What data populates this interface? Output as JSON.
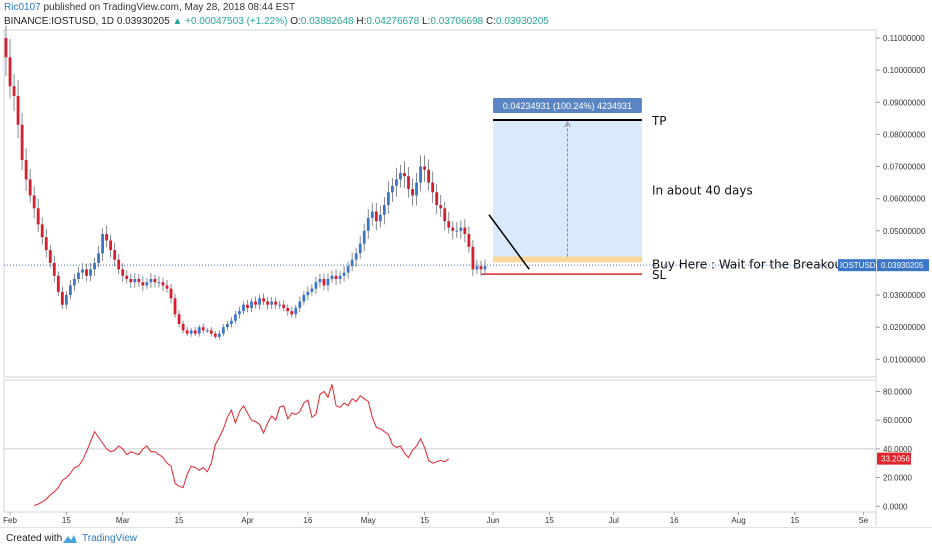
{
  "header": {
    "user": "Ric0107",
    "published": "published on TradingView.com, May 28, 2018 08:44 EST",
    "symbol_line": "BINANCE:IOSTUSD, 1D",
    "last": "0.03930205",
    "change": "▲ +0.00047503 (+1.22%)",
    "ohlc": {
      "o_label": "O:",
      "o": "0.03882648",
      "h_label": "H:",
      "h": "0.04276678",
      "l_label": "L:",
      "l": "0.03706698",
      "c_label": "C:",
      "c": "0.03930205"
    }
  },
  "footer": {
    "created": "Created with",
    "brand": "TradingView"
  },
  "colors": {
    "up": "#3c76c9",
    "down": "#d81e2c",
    "rsi": "#e0242c",
    "projection_fill": "#dbeafa",
    "entry_zone": "#fbd79a",
    "tp_line": "#000000",
    "sl_line": "#e0242c",
    "price_tag": "#3c76c9"
  },
  "chart_data": {
    "type": "candlestick",
    "symbol": "IOSTUSD",
    "interval": "1D",
    "price_axis": {
      "ticks": [
        "0.11000000",
        "0.10000000",
        "0.09000000",
        "0.08000000",
        "0.07000000",
        "0.06000000",
        "0.05000000",
        "0.04000000",
        "0.03000000",
        "0.02000000",
        "0.01000000"
      ],
      "ylim": [
        0.0045,
        0.1125
      ],
      "current_label": "IOSTUSD",
      "current_value": "0.03930205"
    },
    "rsi_axis": {
      "ticks": [
        "80.0000",
        "60.0000",
        "40.0000",
        "20.0000",
        "0.0000"
      ],
      "ylim": [
        -4,
        88
      ],
      "band_line": 40,
      "current_value": "33.2056"
    },
    "x_ticks": [
      {
        "label": "Feb",
        "day": 1
      },
      {
        "label": "15",
        "day": 15
      },
      {
        "label": "Mar",
        "day": 29
      },
      {
        "label": "15",
        "day": 43
      },
      {
        "label": "Apr",
        "day": 60
      },
      {
        "label": "16",
        "day": 75
      },
      {
        "label": "May",
        "day": 90
      },
      {
        "label": "15",
        "day": 104
      },
      {
        "label": "Jun",
        "day": 121
      },
      {
        "label": "15",
        "day": 135
      },
      {
        "label": "Jul",
        "day": 151
      },
      {
        "label": "16",
        "day": 166
      },
      {
        "label": "Aug",
        "day": 182
      },
      {
        "label": "15",
        "day": 196
      },
      {
        "label": "Se",
        "day": 213
      }
    ],
    "x_note": "day 0 = 2018-01-31",
    "close": [
      0.104,
      0.095,
      0.092,
      0.083,
      0.072,
      0.066,
      0.061,
      0.057,
      0.052,
      0.048,
      0.044,
      0.04,
      0.036,
      0.031,
      0.027,
      0.03,
      0.033,
      0.035,
      0.037,
      0.038,
      0.036,
      0.038,
      0.04,
      0.043,
      0.049,
      0.047,
      0.044,
      0.041,
      0.038,
      0.036,
      0.035,
      0.034,
      0.035,
      0.034,
      0.033,
      0.034,
      0.035,
      0.034,
      0.034,
      0.033,
      0.032,
      0.029,
      0.024,
      0.021,
      0.019,
      0.018,
      0.019,
      0.018,
      0.02,
      0.019,
      0.019,
      0.018,
      0.017,
      0.018,
      0.02,
      0.021,
      0.022,
      0.024,
      0.025,
      0.027,
      0.026,
      0.028,
      0.027,
      0.029,
      0.028,
      0.027,
      0.028,
      0.027,
      0.027,
      0.026,
      0.025,
      0.024,
      0.026,
      0.028,
      0.03,
      0.031,
      0.032,
      0.034,
      0.035,
      0.033,
      0.035,
      0.036,
      0.035,
      0.036,
      0.037,
      0.039,
      0.041,
      0.043,
      0.046,
      0.05,
      0.054,
      0.056,
      0.053,
      0.055,
      0.058,
      0.062,
      0.064,
      0.066,
      0.068,
      0.067,
      0.063,
      0.061,
      0.065,
      0.07,
      0.069,
      0.065,
      0.062,
      0.058,
      0.057,
      0.053,
      0.051,
      0.05,
      0.05,
      0.051,
      0.049,
      0.045,
      0.038,
      0.039,
      0.038,
      0.039
    ],
    "rsi": [
      0.5,
      1.5,
      3,
      5,
      8,
      10,
      13,
      18,
      20,
      23,
      27,
      28,
      32,
      38,
      45,
      52,
      48,
      44,
      40,
      38,
      39,
      42,
      40,
      36,
      38,
      37,
      36,
      40,
      42,
      38,
      38,
      36,
      34,
      30,
      28,
      16,
      14,
      13,
      22,
      28,
      27,
      25,
      27,
      24,
      30,
      43,
      48,
      54,
      62,
      67,
      58,
      66,
      70,
      65,
      60,
      59,
      57,
      51,
      58,
      63,
      60,
      69,
      70,
      61,
      65,
      64,
      66,
      72,
      74,
      62,
      64,
      78,
      80,
      76,
      85,
      70,
      69,
      72,
      70,
      75,
      73,
      77,
      75,
      73,
      62,
      55,
      54,
      52,
      50,
      43,
      41,
      42,
      37,
      34,
      39,
      42,
      47,
      41,
      32,
      30,
      31,
      32,
      31,
      33
    ],
    "annotations": {
      "projection_box": "0.04234931 (100.24%) 4234931",
      "tp_label": "TP",
      "tp_level": 0.0845,
      "duration_label": "In about 40 days",
      "entry_label": "Buy Here : Wait for the Breakout",
      "entry_zone": [
        0.0402,
        0.042
      ],
      "sl_label": "SL",
      "sl_level": 0.0365,
      "trendline": [
        {
          "day": 120,
          "price": 0.055
        },
        {
          "day": 130,
          "price": 0.038
        }
      ]
    }
  }
}
